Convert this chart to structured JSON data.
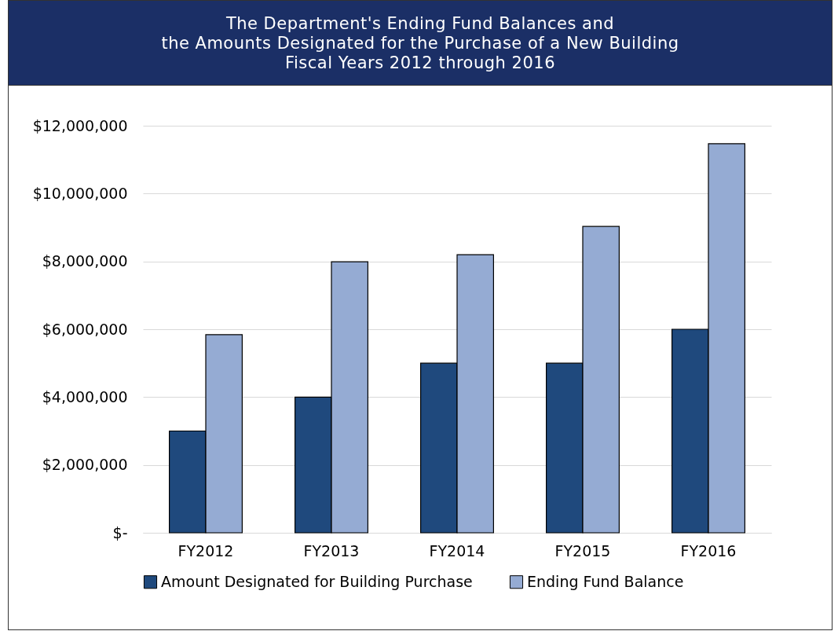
{
  "chart_data": {
    "type": "bar",
    "title": "The Department's Ending Fund Balances and\nthe Amounts Designated for the Purchase of a New Building\nFiscal Years 2012 through 2016",
    "categories": [
      "FY2012",
      "FY2013",
      "FY2014",
      "FY2015",
      "FY2016"
    ],
    "series": [
      {
        "name": "Amount Designated for Building Purchase",
        "color": "#1f497d",
        "values": [
          3000000,
          4000000,
          5000000,
          5000000,
          6000000
        ]
      },
      {
        "name": "Ending Fund Balance",
        "color": "#95abd3",
        "values": [
          5840000,
          7990000,
          8200000,
          9030000,
          11470000
        ]
      }
    ],
    "ylim": [
      0,
      12000000
    ],
    "yticks": [
      {
        "value": 0,
        "label": "$-"
      },
      {
        "value": 2000000,
        "label": "$2,000,000"
      },
      {
        "value": 4000000,
        "label": "$4,000,000"
      },
      {
        "value": 6000000,
        "label": "$6,000,000"
      },
      {
        "value": 8000000,
        "label": "$8,000,000"
      },
      {
        "value": 10000000,
        "label": "$10,000,000"
      },
      {
        "value": 12000000,
        "label": "$12,000,000"
      }
    ],
    "grid": "y",
    "legend": "bottom"
  }
}
